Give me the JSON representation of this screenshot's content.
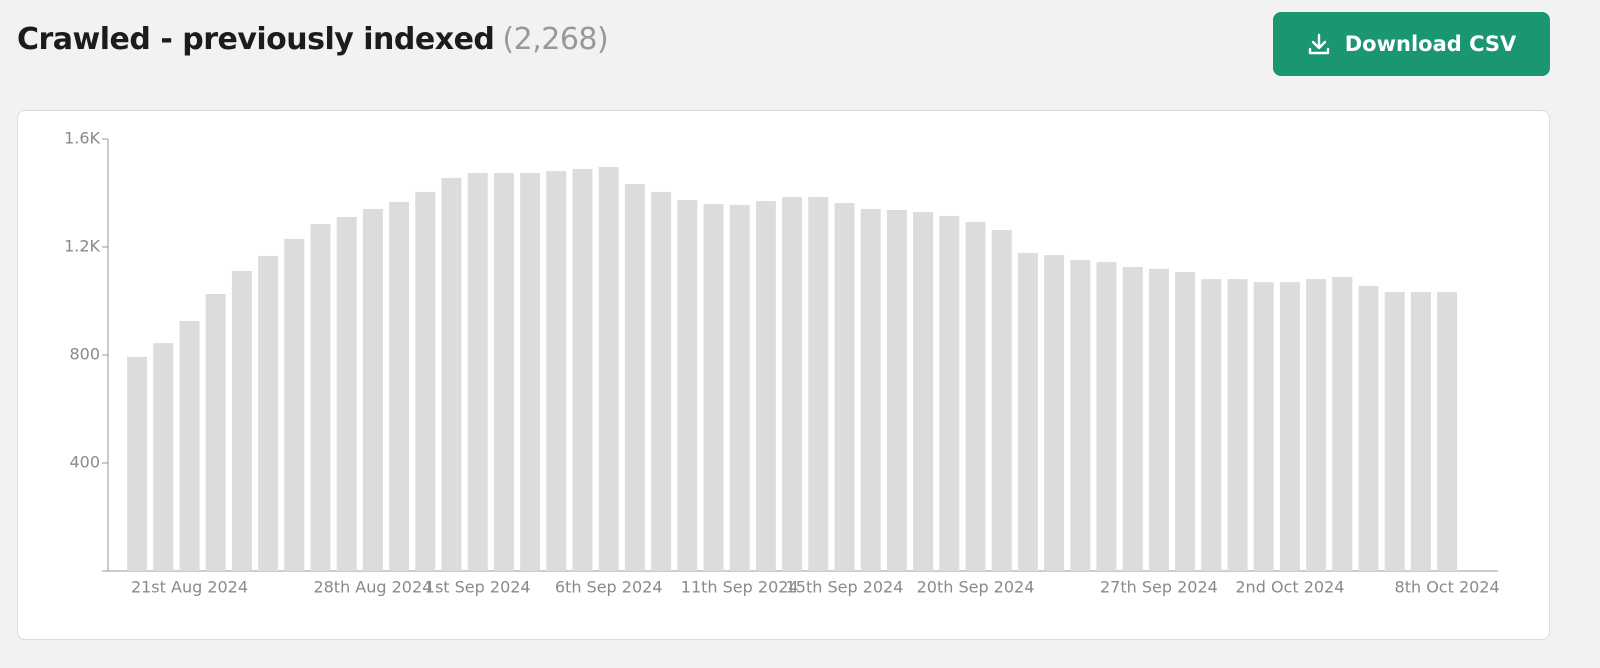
{
  "header": {
    "title": "Crawled - previously indexed",
    "count": "(2,268)"
  },
  "button": {
    "label": "Download CSV"
  },
  "chart_data": {
    "type": "bar",
    "categories": [
      null,
      null,
      "21st Aug 2024",
      null,
      null,
      null,
      null,
      null,
      null,
      "28th Aug 2024",
      null,
      null,
      null,
      "1st Sep 2024",
      null,
      null,
      null,
      null,
      "6th Sep 2024",
      null,
      null,
      null,
      null,
      "11th Sep 2024",
      null,
      null,
      null,
      "15th Sep 2024",
      null,
      null,
      null,
      null,
      "20th Sep 2024",
      null,
      null,
      null,
      null,
      null,
      null,
      "27th Sep 2024",
      null,
      null,
      null,
      null,
      "2nd Oct 2024",
      null,
      null,
      null,
      null,
      null,
      "8th Oct 2024"
    ],
    "values": [
      793,
      844,
      926,
      1026,
      1111,
      1167,
      1230,
      1285,
      1311,
      1341,
      1367,
      1404,
      1456,
      1474,
      1474,
      1474,
      1481,
      1489,
      1496,
      1433,
      1404,
      1374,
      1359,
      1356,
      1370,
      1385,
      1385,
      1363,
      1341,
      1337,
      1330,
      1315,
      1293,
      1263,
      1178,
      1170,
      1152,
      1144,
      1126,
      1119,
      1107,
      1081,
      1081,
      1070,
      1070,
      1081,
      1089,
      1056,
      1033,
      1033,
      1033
    ],
    "color": "#dcdcdc",
    "ylim": [
      0,
      1600
    ],
    "yticks": [
      {
        "value": 400,
        "label": "400"
      },
      {
        "value": 800,
        "label": "800"
      },
      {
        "value": 1200,
        "label": "1.2K"
      },
      {
        "value": 1600,
        "label": "1.6K"
      }
    ]
  }
}
